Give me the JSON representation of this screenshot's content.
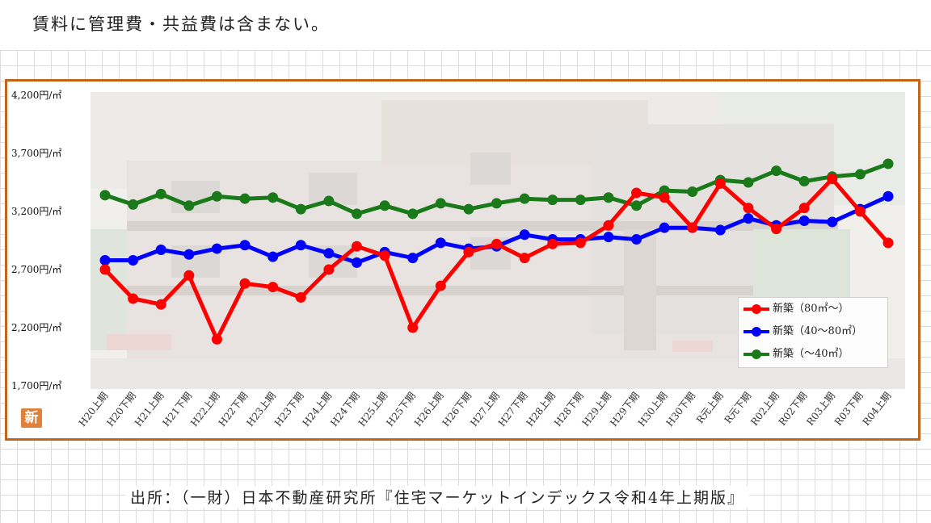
{
  "header": {
    "note": "賃料に管理費・共益費は含まない。"
  },
  "footer": {
    "source": "出所：（一財）日本不動産研究所『住宅マーケットインデックス令和4年上期版』"
  },
  "badge": {
    "text": "新"
  },
  "chart_data": {
    "type": "line",
    "title": "",
    "xlabel": "",
    "ylabel": "",
    "ylim": [
      1700,
      4200
    ],
    "yticks": [
      1700,
      2200,
      2700,
      3200,
      3700,
      4200
    ],
    "ytick_labels": [
      "1,700円/㎡",
      "2,200円/㎡",
      "2,700円/㎡",
      "3,200円/㎡",
      "3,700円/㎡",
      "4,200円/㎡"
    ],
    "grid": false,
    "legend_position": "bottom-right",
    "categories": [
      "H20上期",
      "H20下期",
      "H21上期",
      "H21下期",
      "H22上期",
      "H22下期",
      "H23上期",
      "H23下期",
      "H24上期",
      "H24下期",
      "H25上期",
      "H25下期",
      "H26上期",
      "H26下期",
      "H27上期",
      "H27下期",
      "H28上期",
      "H28下期",
      "H29上期",
      "H29下期",
      "H30上期",
      "H30下期",
      "R元上期",
      "R元下期",
      "R02上期",
      "R02下期",
      "R03上期",
      "R03下期",
      "R04上期"
    ],
    "series": [
      {
        "name": "新築（80㎡～）",
        "color": "#ff0000",
        "values": [
          2700,
          2450,
          2400,
          2650,
          2100,
          2580,
          2550,
          2460,
          2700,
          2900,
          2820,
          2200,
          2560,
          2850,
          2920,
          2800,
          2920,
          2930,
          3080,
          3360,
          3320,
          3060,
          3440,
          3230,
          3050,
          3230,
          3480,
          3200,
          2930
        ]
      },
      {
        "name": "新築（40～80㎡）",
        "color": "#0000ff",
        "values": [
          2780,
          2780,
          2870,
          2830,
          2880,
          2910,
          2810,
          2910,
          2840,
          2760,
          2850,
          2800,
          2930,
          2880,
          2900,
          3000,
          2960,
          2960,
          2980,
          2960,
          3060,
          3060,
          3040,
          3140,
          3080,
          3120,
          3110,
          3220,
          3330
        ]
      },
      {
        "name": "新築（～40㎡）",
        "color": "#1a7a1a",
        "values": [
          3340,
          3260,
          3350,
          3250,
          3330,
          3310,
          3320,
          3220,
          3290,
          3180,
          3250,
          3180,
          3270,
          3220,
          3270,
          3310,
          3300,
          3300,
          3320,
          3250,
          3380,
          3370,
          3470,
          3450,
          3550,
          3460,
          3500,
          3520,
          3610
        ]
      }
    ]
  }
}
